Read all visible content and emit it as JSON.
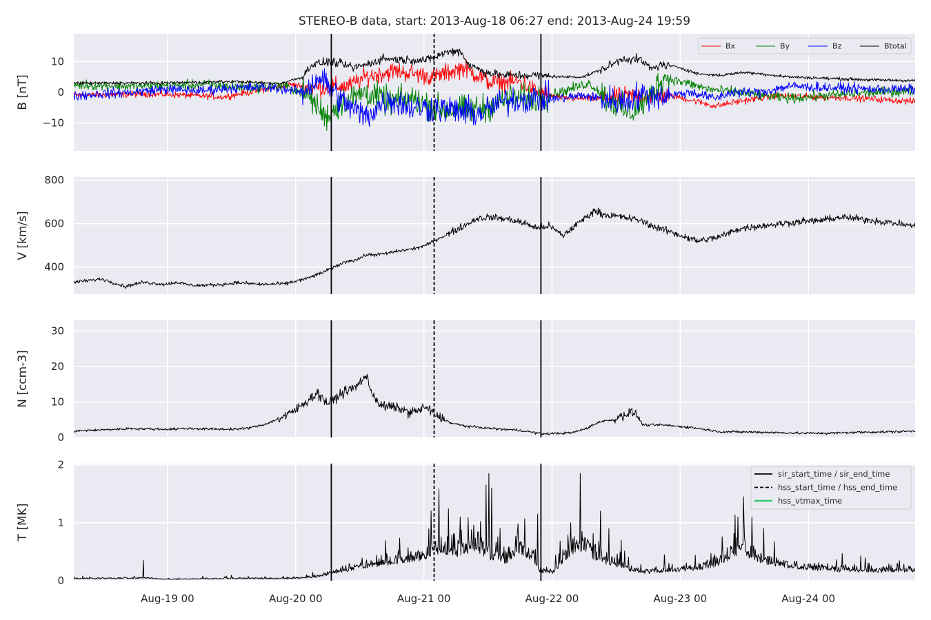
{
  "chart_data": {
    "type": "line",
    "title": "STEREO-B data, start: 2013-Aug-18 06:27  end: 2013-Aug-24 19:59",
    "x_range": [
      "2013-08-18 06:27",
      "2013-08-24 19:59"
    ],
    "x_ticks": [
      "Aug-19 00",
      "Aug-20 00",
      "Aug-21 00",
      "Aug-22 00",
      "Aug-23 00",
      "Aug-24 00"
    ],
    "grid": true,
    "markers": {
      "sir_start_time": "2013-08-20 06:40",
      "hss_start_time": "2013-08-21 01:55",
      "sir_end_time": "2013-08-21 21:55"
    },
    "panels": [
      {
        "id": "B",
        "ylabel": "B [nT]",
        "ylim": [
          -19,
          19
        ],
        "yticks": [
          "10",
          "0",
          "−10"
        ],
        "yticks_values": [
          10,
          0,
          -10
        ],
        "legend_position": "upper-right",
        "series": [
          {
            "name": "Bx",
            "color": "#ff0000"
          },
          {
            "name": "By",
            "color": "#008000"
          },
          {
            "name": "Bz",
            "color": "#0000ff"
          },
          {
            "name": "Btotal",
            "color": "#000000"
          }
        ]
      },
      {
        "id": "V",
        "ylabel": "V [km/s]",
        "ylim": [
          275,
          815
        ],
        "yticks": [
          "800",
          "600",
          "400"
        ],
        "yticks_values": [
          800,
          600,
          400
        ],
        "series": [
          {
            "color": "#000000"
          }
        ]
      },
      {
        "id": "N",
        "ylabel": "N [ccm-3]",
        "ylim": [
          0,
          33
        ],
        "yticks": [
          "30",
          "20",
          "10",
          "0"
        ],
        "yticks_values": [
          30,
          20,
          10,
          0
        ],
        "series": [
          {
            "color": "#000000"
          }
        ]
      },
      {
        "id": "T",
        "ylabel": "T [MK]",
        "ylim": [
          0,
          2.02
        ],
        "yticks": [
          "2",
          "1",
          "0"
        ],
        "yticks_values": [
          2,
          1,
          0
        ],
        "legend_position": "upper-right",
        "legend": [
          {
            "label": "sir_start_time / sir_end_time",
            "style": "solid",
            "color": "#000000"
          },
          {
            "label": "hss_start_time / hss_end_time",
            "style": "dashed",
            "color": "#000000"
          },
          {
            "label": "hss_vtmax_time",
            "style": "solid",
            "color": "#2ecc71"
          }
        ],
        "series": [
          {
            "color": "#000000"
          }
        ]
      }
    ],
    "profiles": {
      "V": [
        [
          0,
          330
        ],
        [
          0.5,
          345
        ],
        [
          0.9,
          310
        ],
        [
          1.2,
          330
        ],
        [
          1.6,
          320
        ],
        [
          1.8,
          330
        ],
        [
          2.0,
          318
        ],
        [
          2.2,
          315
        ],
        [
          2.6,
          320
        ],
        [
          2.85,
          328
        ],
        [
          3.3,
          320
        ],
        [
          3.7,
          323
        ],
        [
          3.95,
          340
        ],
        [
          4.05,
          345
        ],
        [
          4.2,
          360
        ],
        [
          4.35,
          375
        ],
        [
          4.55,
          400
        ],
        [
          4.75,
          425
        ],
        [
          4.95,
          435
        ],
        [
          5.1,
          455
        ],
        [
          5.4,
          460
        ],
        [
          5.7,
          475
        ],
        [
          5.95,
          485
        ],
        [
          6.15,
          500
        ],
        [
          6.4,
          535
        ],
        [
          6.6,
          560
        ],
        [
          6.85,
          595
        ],
        [
          7.05,
          625
        ],
        [
          7.3,
          630
        ],
        [
          7.6,
          620
        ],
        [
          7.9,
          600
        ],
        [
          8.1,
          580
        ],
        [
          8.3,
          590
        ],
        [
          8.55,
          545
        ],
        [
          8.8,
          600
        ],
        [
          9.1,
          660
        ],
        [
          9.3,
          640
        ],
        [
          9.6,
          630
        ],
        [
          9.9,
          615
        ],
        [
          10.1,
          590
        ],
        [
          10.45,
          560
        ],
        [
          10.9,
          520
        ],
        [
          11.3,
          540
        ],
        [
          11.6,
          575
        ],
        [
          12.0,
          590
        ],
        [
          12.35,
          600
        ],
        [
          12.7,
          610
        ],
        [
          13.05,
          615
        ],
        [
          13.4,
          630
        ],
        [
          13.8,
          620
        ],
        [
          14.1,
          610
        ],
        [
          14.4,
          600
        ],
        [
          14.65,
          590
        ],
        [
          14.7,
          585
        ]
      ],
      "N": [
        [
          0,
          1.8
        ],
        [
          1.0,
          2.5
        ],
        [
          1.6,
          2.3
        ],
        [
          2.0,
          2.5
        ],
        [
          2.7,
          2.3
        ],
        [
          3.0,
          2.5
        ],
        [
          3.3,
          3.5
        ],
        [
          3.55,
          5.0
        ],
        [
          3.75,
          6.5
        ],
        [
          3.9,
          8.0
        ],
        [
          4.05,
          10.0
        ],
        [
          4.25,
          12.5
        ],
        [
          4.45,
          9.5
        ],
        [
          4.6,
          11.5
        ],
        [
          4.75,
          13.0
        ],
        [
          4.95,
          14.5
        ],
        [
          5.1,
          17.5
        ],
        [
          5.2,
          13.0
        ],
        [
          5.35,
          9.0
        ],
        [
          5.6,
          8.5
        ],
        [
          5.9,
          7.0
        ],
        [
          6.15,
          8.5
        ],
        [
          6.35,
          6.0
        ],
        [
          6.6,
          4.0
        ],
        [
          6.85,
          3.2
        ],
        [
          7.3,
          2.5
        ],
        [
          7.8,
          2.0
        ],
        [
          8.0,
          1.5
        ],
        [
          8.2,
          1.0
        ],
        [
          8.7,
          1.3
        ],
        [
          8.95,
          2.5
        ],
        [
          9.2,
          4.5
        ],
        [
          9.45,
          5.0
        ],
        [
          9.6,
          6.5
        ],
        [
          9.8,
          7.0
        ],
        [
          9.95,
          3.5
        ],
        [
          10.3,
          3.5
        ],
        [
          10.8,
          2.8
        ],
        [
          11.3,
          1.6
        ],
        [
          12.0,
          1.5
        ],
        [
          12.7,
          1.2
        ],
        [
          13.2,
          1.2
        ],
        [
          13.8,
          1.5
        ],
        [
          14.3,
          1.6
        ],
        [
          14.7,
          1.8
        ]
      ],
      "T": [
        [
          0,
          0.03
        ],
        [
          0.6,
          0.03
        ],
        [
          1.2,
          0.04
        ],
        [
          1.6,
          0.02
        ],
        [
          2.6,
          0.03
        ],
        [
          3.6,
          0.03
        ],
        [
          4.0,
          0.04
        ],
        [
          4.3,
          0.06
        ],
        [
          4.6,
          0.12
        ],
        [
          5.0,
          0.2
        ],
        [
          5.4,
          0.25
        ],
        [
          5.8,
          0.3
        ],
        [
          6.1,
          0.35
        ],
        [
          6.4,
          0.45
        ],
        [
          6.7,
          0.4
        ],
        [
          7.0,
          0.5
        ],
        [
          7.3,
          0.35
        ],
        [
          7.55,
          0.3
        ],
        [
          7.8,
          0.45
        ],
        [
          8.0,
          0.35
        ],
        [
          8.15,
          0.12
        ],
        [
          8.4,
          0.12
        ],
        [
          8.65,
          0.4
        ],
        [
          8.9,
          0.5
        ],
        [
          9.1,
          0.35
        ],
        [
          9.4,
          0.25
        ],
        [
          9.6,
          0.22
        ],
        [
          9.75,
          0.15
        ],
        [
          10.0,
          0.12
        ],
        [
          10.6,
          0.15
        ],
        [
          11.1,
          0.2
        ],
        [
          11.4,
          0.3
        ],
        [
          11.65,
          0.45
        ],
        [
          12.0,
          0.3
        ],
        [
          12.4,
          0.22
        ],
        [
          12.9,
          0.18
        ],
        [
          13.4,
          0.15
        ],
        [
          14.0,
          0.14
        ],
        [
          14.7,
          0.15
        ]
      ],
      "T_spikes": [
        [
          1.22,
          0.35
        ],
        [
          6.75,
          1.1
        ],
        [
          7.2,
          1.65
        ],
        [
          7.25,
          1.85
        ],
        [
          7.3,
          1.6
        ],
        [
          7.45,
          0.9
        ],
        [
          7.75,
          0.85
        ],
        [
          8.1,
          1.15
        ],
        [
          8.68,
          1.0
        ],
        [
          8.85,
          1.85
        ],
        [
          9.2,
          1.2
        ],
        [
          9.35,
          0.9
        ],
        [
          11.6,
          1.1
        ],
        [
          11.7,
          1.45
        ],
        [
          11.85,
          1.1
        ],
        [
          12.05,
          0.9
        ]
      ],
      "Btotal": [
        [
          0,
          3
        ],
        [
          1.5,
          3
        ],
        [
          2.8,
          3.5
        ],
        [
          3.6,
          2.8
        ],
        [
          4.0,
          5
        ],
        [
          4.15,
          9
        ],
        [
          4.5,
          10
        ],
        [
          4.9,
          8
        ],
        [
          5.2,
          9.5
        ],
        [
          5.4,
          11
        ],
        [
          5.8,
          10.5
        ],
        [
          6.2,
          10.5
        ],
        [
          6.5,
          13
        ],
        [
          6.75,
          13.5
        ],
        [
          6.9,
          9
        ],
        [
          7.2,
          6.5
        ],
        [
          7.5,
          5.5
        ],
        [
          8.1,
          5.5
        ],
        [
          8.5,
          5.0
        ],
        [
          8.9,
          5.0
        ],
        [
          9.3,
          8
        ],
        [
          9.6,
          11
        ],
        [
          9.9,
          10.5
        ],
        [
          10.1,
          7.5
        ],
        [
          10.25,
          9
        ],
        [
          10.6,
          8
        ],
        [
          10.9,
          6
        ],
        [
          11.3,
          5.5
        ],
        [
          11.7,
          6.5
        ],
        [
          12.0,
          6
        ],
        [
          12.5,
          5
        ],
        [
          13.2,
          4.5
        ],
        [
          14.0,
          4
        ],
        [
          14.7,
          3.8
        ]
      ],
      "Bx": [
        [
          0,
          -1
        ],
        [
          1.3,
          -0.5
        ],
        [
          2.0,
          -1
        ],
        [
          2.6,
          -1.5
        ],
        [
          3.2,
          0.5
        ],
        [
          3.8,
          2.5
        ],
        [
          4.2,
          1.5
        ],
        [
          4.8,
          2
        ],
        [
          5.1,
          5
        ],
        [
          5.6,
          7
        ],
        [
          6.3,
          5
        ],
        [
          6.8,
          8
        ],
        [
          7.3,
          3
        ],
        [
          7.8,
          3.5
        ],
        [
          8.1,
          0
        ],
        [
          8.6,
          -2
        ],
        [
          9.2,
          -2
        ],
        [
          9.8,
          -1
        ],
        [
          10.4,
          -1
        ],
        [
          10.9,
          -3
        ],
        [
          11.2,
          -4.5
        ],
        [
          11.6,
          -3
        ],
        [
          12.3,
          -1
        ],
        [
          13.0,
          -1.5
        ],
        [
          13.8,
          -2
        ],
        [
          14.7,
          -3
        ]
      ],
      "By": [
        [
          0,
          2.5
        ],
        [
          1.0,
          2
        ],
        [
          2.3,
          2.5
        ],
        [
          3.0,
          1.5
        ],
        [
          3.7,
          2
        ],
        [
          4.1,
          -1
        ],
        [
          4.4,
          -8
        ],
        [
          4.7,
          -3
        ],
        [
          5.1,
          0
        ],
        [
          5.5,
          -3
        ],
        [
          5.9,
          -2
        ],
        [
          6.3,
          -5
        ],
        [
          6.7,
          -6
        ],
        [
          7.2,
          -5
        ],
        [
          7.6,
          -2
        ],
        [
          8.1,
          -2
        ],
        [
          8.5,
          0
        ],
        [
          9.0,
          3
        ],
        [
          9.4,
          -3
        ],
        [
          9.7,
          -7
        ],
        [
          10.0,
          -3
        ],
        [
          10.3,
          5
        ],
        [
          10.7,
          3
        ],
        [
          11.1,
          1
        ],
        [
          11.6,
          0
        ],
        [
          12.0,
          -1
        ],
        [
          12.5,
          -2
        ],
        [
          13.2,
          -1
        ],
        [
          14.0,
          0
        ],
        [
          14.7,
          0.5
        ]
      ],
      "Bz": [
        [
          0,
          -1
        ],
        [
          1.0,
          0
        ],
        [
          1.6,
          1
        ],
        [
          2.2,
          0.5
        ],
        [
          2.8,
          1.5
        ],
        [
          3.5,
          1.5
        ],
        [
          4.0,
          0
        ],
        [
          4.3,
          5
        ],
        [
          4.7,
          -3
        ],
        [
          5.1,
          -8
        ],
        [
          5.5,
          -2
        ],
        [
          5.9,
          -5
        ],
        [
          6.3,
          -5
        ],
        [
          6.7,
          -6
        ],
        [
          7.1,
          -7
        ],
        [
          7.5,
          -3
        ],
        [
          8.0,
          -2
        ],
        [
          8.5,
          -2
        ],
        [
          8.9,
          -1
        ],
        [
          9.2,
          -2
        ],
        [
          9.6,
          -3
        ],
        [
          9.9,
          -1
        ],
        [
          10.4,
          -1
        ],
        [
          10.8,
          0
        ],
        [
          11.2,
          -2
        ],
        [
          11.5,
          0
        ],
        [
          12.0,
          0
        ],
        [
          12.5,
          2
        ],
        [
          13.2,
          1.5
        ],
        [
          14.0,
          1
        ],
        [
          14.7,
          1
        ]
      ]
    }
  }
}
